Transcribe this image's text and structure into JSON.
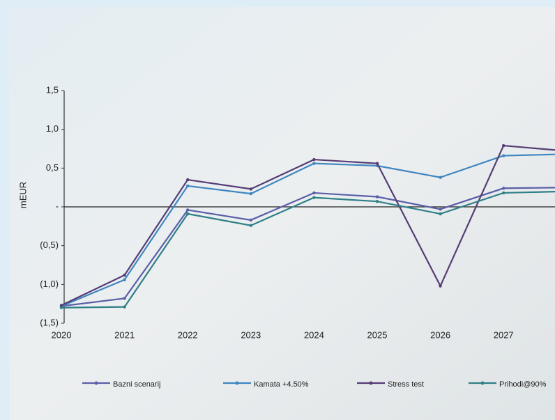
{
  "chart_data": {
    "type": "line",
    "ylabel": "mEUR",
    "categories": [
      "2020",
      "2021",
      "2022",
      "2023",
      "2024",
      "2025",
      "2026",
      "2027",
      null
    ],
    "series": [
      {
        "name": "Bazni scenarij",
        "color": "#5a5fa8",
        "values": [
          -1.28,
          -1.18,
          -0.04,
          -0.17,
          0.18,
          0.13,
          -0.03,
          0.24,
          0.25
        ]
      },
      {
        "name": "Kamata +4.50%",
        "color": "#3f86c0",
        "values": [
          -1.28,
          -0.94,
          0.27,
          0.17,
          0.56,
          0.53,
          0.38,
          0.66,
          0.68
        ]
      },
      {
        "name": "Stress test",
        "color": "#553c74",
        "values": [
          -1.27,
          -0.88,
          0.35,
          0.23,
          0.61,
          0.56,
          -1.02,
          0.79,
          0.72
        ]
      },
      {
        "name": "Prihodi@90%",
        "color": "#2f7f86",
        "values": [
          -1.3,
          -1.29,
          -0.09,
          -0.24,
          0.12,
          0.07,
          -0.09,
          0.18,
          0.2
        ]
      }
    ],
    "ylim": [
      -1.5,
      1.5
    ],
    "yticks": [
      {
        "value": 1.5,
        "label": "1,5"
      },
      {
        "value": 1.0,
        "label": "1,0"
      },
      {
        "value": 0.5,
        "label": "0,5"
      },
      {
        "value": 0,
        "label": "-"
      },
      {
        "value": -0.5,
        "label": "(0,5)"
      },
      {
        "value": -1.0,
        "label": "(1,0)"
      },
      {
        "value": -1.5,
        "label": "(1,5)"
      }
    ],
    "legend": "bottom"
  }
}
